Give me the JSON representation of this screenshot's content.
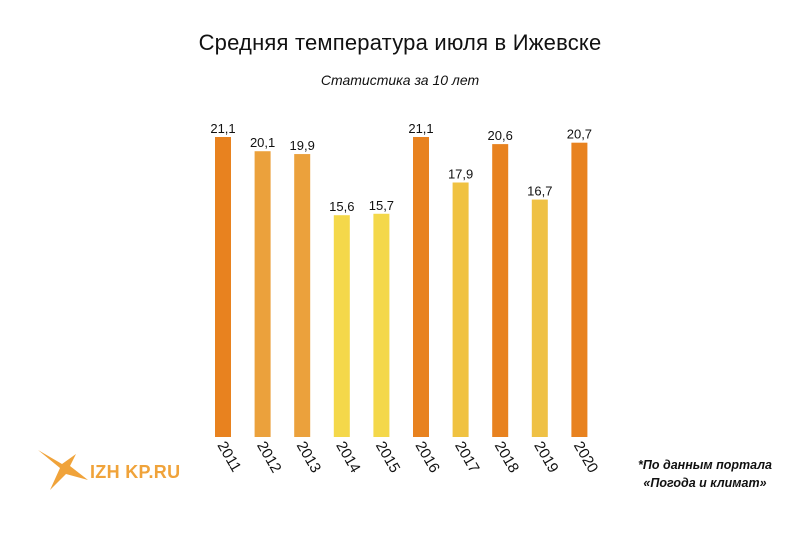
{
  "chart_data": {
    "type": "bar",
    "title": "Средняя температура июля в Ижевске",
    "subtitle": "Статистика за 10 лет",
    "categories": [
      "2011",
      "2012",
      "2013",
      "2014",
      "2015",
      "2016",
      "2017",
      "2018",
      "2019",
      "2020"
    ],
    "values": [
      21.1,
      20.1,
      19.9,
      15.6,
      15.7,
      21.1,
      17.9,
      20.6,
      16.7,
      20.7
    ],
    "value_labels": [
      "21,1",
      "20,1",
      "19,9",
      "15,6",
      "15,7",
      "21,1",
      "17,9",
      "20,6",
      "16,7",
      "20,7"
    ],
    "colors": [
      "#e8821f",
      "#eba13c",
      "#eba13c",
      "#f4d84a",
      "#f4d84a",
      "#e8821f",
      "#f0c241",
      "#e8821f",
      "#efc145",
      "#e8821f"
    ],
    "xlabel": "",
    "ylabel": "",
    "ylim": [
      0,
      21.1
    ],
    "grid": false,
    "legend": "none"
  },
  "source_note": {
    "line1": "*По данным портала",
    "line2": "«Погода и климат»"
  },
  "logo": {
    "text": "IZH KP.RU",
    "icon": "swallow-bird-icon",
    "color": "#f0a33a"
  }
}
